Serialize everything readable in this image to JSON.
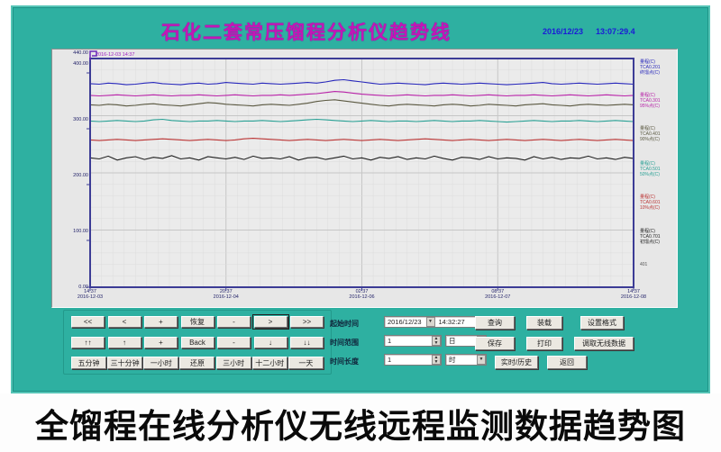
{
  "window": {
    "title": "石化二套常压馏程分析仪趋势线",
    "date": "2016/12/23",
    "time": "13:07:29.4"
  },
  "caption": "全馏程在线分析仪无线远程监测数据趋势图",
  "chart_data": {
    "type": "line",
    "title": "石化二套常压馏程分析仪趋势线",
    "cursor_timestamp": "2016-12-03 14:37",
    "plot_bg": "#ebebeb",
    "grid": true,
    "ylim": [
      0,
      410
    ],
    "y_ticks": [
      "440.00",
      "400.00",
      "300.00",
      "200.00",
      "100.00",
      "0.00"
    ],
    "x_ticks": [
      {
        "time": "14:37",
        "date": "2016-12-03"
      },
      {
        "time": "20:37",
        "date": "2016-12-04"
      },
      {
        "time": "02:37",
        "date": "2016-12-06"
      },
      {
        "time": "08:37",
        "date": "2016-12-07"
      },
      {
        "time": "14:37",
        "date": "2016-12-08"
      }
    ],
    "right_axis_note": "401",
    "series": [
      {
        "name": "终馏点",
        "color": "#2727bb",
        "legend": [
          "量程(C)",
          "TCA0.201",
          "终馏点(C)"
        ],
        "values": [
          365,
          364,
          366,
          365,
          363,
          364,
          366,
          367,
          365,
          364,
          363,
          365,
          366,
          364,
          365,
          367,
          366,
          365,
          364,
          366,
          365,
          364,
          365,
          366,
          367,
          366,
          368,
          371,
          372,
          370,
          368,
          366,
          364,
          365,
          366,
          365,
          364,
          363,
          365,
          366,
          365,
          364,
          365,
          366,
          365,
          364,
          363,
          364,
          365,
          366,
          367,
          365,
          364,
          365,
          366,
          365,
          364,
          365,
          366,
          365,
          364
        ]
      },
      {
        "name": "95%点",
        "color": "#b822a8",
        "legend": [
          "量程(C)",
          "TCA0.301",
          "95%点(C)"
        ],
        "values": [
          344,
          343,
          344,
          345,
          344,
          343,
          344,
          345,
          344,
          343,
          344,
          344,
          345,
          344,
          343,
          344,
          345,
          344,
          343,
          344,
          344,
          345,
          344,
          345,
          346,
          347,
          349,
          351,
          350,
          348,
          346,
          345,
          344,
          343,
          344,
          345,
          344,
          343,
          344,
          344,
          345,
          344,
          343,
          344,
          345,
          344,
          343,
          344,
          344,
          345,
          344,
          343,
          344,
          345,
          344,
          343,
          344,
          345,
          344,
          343,
          344
        ]
      },
      {
        "name": "90%点",
        "color": "#5a5840",
        "legend": [
          "量程(C)",
          "TCA0.401",
          "90%点(C)"
        ],
        "values": [
          327,
          326,
          328,
          327,
          325,
          326,
          328,
          329,
          327,
          326,
          325,
          327,
          329,
          331,
          330,
          328,
          327,
          326,
          325,
          327,
          328,
          327,
          326,
          328,
          330,
          333,
          335,
          336,
          334,
          332,
          330,
          328,
          326,
          325,
          327,
          328,
          327,
          326,
          325,
          327,
          328,
          327,
          325,
          326,
          328,
          327,
          326,
          325,
          327,
          328,
          329,
          327,
          326,
          325,
          327,
          328,
          327,
          326,
          327,
          328,
          327
        ]
      },
      {
        "name": "50%点",
        "color": "#28a094",
        "legend": [
          "量程(C)",
          "TCA0.501",
          "50%点(C)"
        ],
        "values": [
          298,
          297,
          298,
          299,
          298,
          297,
          298,
          300,
          301,
          299,
          298,
          297,
          298,
          298,
          299,
          298,
          297,
          298,
          298,
          299,
          298,
          297,
          298,
          299,
          300,
          301,
          300,
          299,
          298,
          297,
          298,
          299,
          298,
          297,
          298,
          298,
          297,
          298,
          299,
          298,
          297,
          298,
          298,
          299,
          298,
          297,
          296,
          297,
          298,
          299,
          298,
          297,
          298,
          298,
          299,
          298,
          297,
          298,
          299,
          298,
          297
        ]
      },
      {
        "name": "10%点",
        "color": "#bb3434",
        "legend": [
          "量程(C)",
          "TCA0.601",
          "10%点(C)"
        ],
        "values": [
          264,
          263,
          264,
          265,
          264,
          263,
          264,
          265,
          266,
          265,
          264,
          263,
          264,
          265,
          264,
          263,
          264,
          266,
          267,
          266,
          265,
          264,
          263,
          264,
          265,
          264,
          263,
          264,
          265,
          264,
          263,
          264,
          265,
          264,
          263,
          264,
          265,
          266,
          265,
          264,
          263,
          264,
          265,
          264,
          263,
          264,
          265,
          264,
          263,
          264,
          265,
          264,
          263,
          264,
          265,
          264,
          263,
          264,
          265,
          264,
          263
        ]
      },
      {
        "name": "初馏点",
        "color": "#1f1f1f",
        "legend": [
          "量程(C)",
          "TCA0.701",
          "初馏点(C)"
        ],
        "values": [
          232,
          230,
          235,
          228,
          232,
          234,
          229,
          233,
          231,
          236,
          230,
          232,
          228,
          234,
          232,
          230,
          233,
          229,
          235,
          231,
          232,
          230,
          234,
          228,
          232,
          233,
          229,
          232,
          235,
          230,
          232,
          228,
          233,
          231,
          234,
          229,
          232,
          230,
          235,
          231,
          228,
          233,
          232,
          229,
          234,
          230,
          232,
          231,
          228,
          234,
          230,
          233,
          229,
          232,
          231,
          235,
          230,
          232,
          229,
          233,
          231
        ]
      }
    ]
  },
  "nav": {
    "row1": [
      "<<",
      "<",
      "+",
      "恢复",
      "-",
      ">",
      ">>"
    ],
    "row2": [
      "↑↑",
      "↑",
      "+",
      "Back",
      "-",
      "↓",
      "↓↓"
    ],
    "row3": [
      "五分钟",
      "三十分钟",
      "一小时",
      "还原",
      "三小时",
      "十二小时",
      "一天"
    ]
  },
  "query": {
    "start_label": "起始时间",
    "start_date": "2016/12/23",
    "start_time": "14:32:27",
    "range_label": "时间范围",
    "range_value": "1",
    "range_unit": "日",
    "length_label": "时间长度",
    "length_value": "1",
    "length_unit": "时",
    "buttons": {
      "query": "查询",
      "load": "装载",
      "set_format": "设置格式",
      "save": "保存",
      "print": "打印",
      "fetch_wireless": "调取无线数据",
      "realtime_history": "实时/历史",
      "back": "返回"
    }
  },
  "icons": {
    "dropdown": "▼",
    "spin_up": "▲",
    "spin_down": "▼"
  },
  "colors": {
    "window_teal": "#2eb0a1",
    "title_magenta": "#c316b6",
    "datetime_blue": "#1b1bd6",
    "plot_border": "#3c3c96",
    "panel_gray": "#e7e7e7"
  }
}
